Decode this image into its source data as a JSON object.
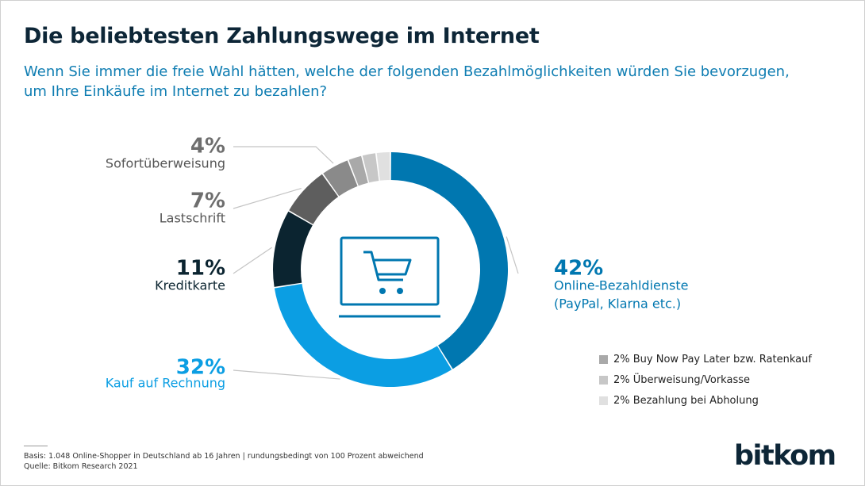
{
  "title": "Die beliebtesten Zahlungswege im Internet",
  "subtitle": "Wenn Sie immer die freie Wahl hätten, welche der folgenden Bezahlmöglichkeiten würden Sie bevorzugen, um Ihre Einkäufe im Internet zu bezahlen?",
  "chart_data": {
    "type": "pie",
    "title": "Die beliebtesten Zahlungswege im Internet",
    "subtitle": "Wenn Sie immer die freie Wahl hätten, welche der folgenden Bezahlmöglichkeiten würden Sie bevorzugen, um Ihre Einkäufe im Internet zu bezahlen?",
    "slices": [
      {
        "label": "Online-Bezahldienste (PayPal, Klarna etc.)",
        "lines": [
          "Online-Bezahldienste",
          "(PayPal, Klarna etc.)"
        ],
        "value": 42,
        "value_label": "42%",
        "color": "#0077b0"
      },
      {
        "label": "Kauf auf Rechnung",
        "lines": [
          "Kauf auf Rechnung"
        ],
        "value": 32,
        "value_label": "32%",
        "color": "#0b9ee3"
      },
      {
        "label": "Kreditkarte",
        "lines": [
          "Kreditkarte"
        ],
        "value": 11,
        "value_label": "11%",
        "color": "#0b2430"
      },
      {
        "label": "Lastschrift",
        "lines": [
          "Lastschrift"
        ],
        "value": 7,
        "value_label": "7%",
        "color": "#5e5e5e"
      },
      {
        "label": "Sofortüberweisung",
        "lines": [
          "Sofortüberweisung"
        ],
        "value": 4,
        "value_label": "4%",
        "color": "#8a8a8a"
      },
      {
        "label": "Buy Now Pay Later bzw. Ratenkauf",
        "value": 2,
        "legend": "2% Buy Now Pay Later bzw. Ratenkauf",
        "color": "#a9a9a9"
      },
      {
        "label": "Überweisung/Vorkasse",
        "value": 2,
        "legend": "2% Überweisung/Vorkasse",
        "color": "#c7c7c7"
      },
      {
        "label": "Bezahlung bei Abholung",
        "value": 2,
        "legend": "2% Bezahlung bei Abholung",
        "color": "#e0e0e0"
      }
    ]
  },
  "footer": {
    "basis": "Basis: 1.048 Online-Shopper in Deutschland ab 16 Jahren | rundungsbedingt von 100 Prozent abweichend",
    "source": "Quelle: Bitkom Research 2021"
  },
  "logo": "bitkom",
  "icons": {
    "center": "shopping-cart-monitor-icon"
  }
}
